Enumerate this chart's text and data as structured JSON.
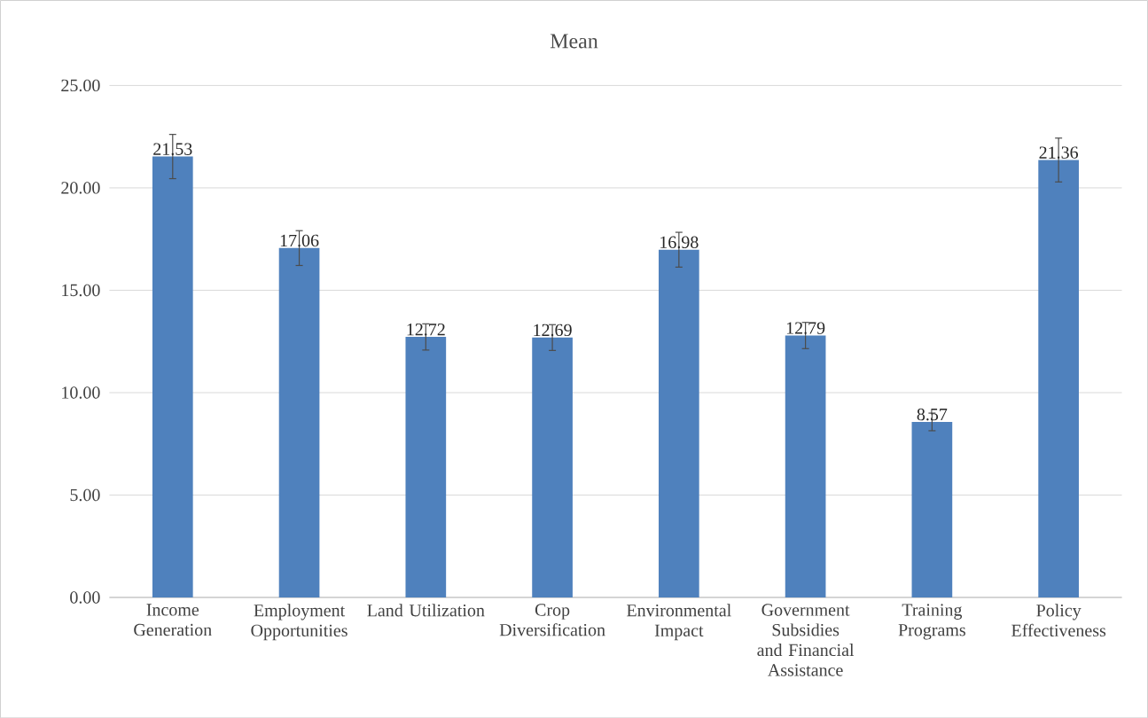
{
  "chart_data": {
    "type": "bar",
    "title": "Mean",
    "categories": [
      "Income Generation",
      "Employment Opportunities",
      "Land Utilization",
      "Crop Diversification",
      "Environmental Impact",
      "Government Subsidies and Financial Assistance",
      "Training Programs",
      "Policy Effectiveness"
    ],
    "values": [
      21.53,
      17.06,
      12.72,
      12.69,
      16.98,
      12.79,
      8.57,
      21.36
    ],
    "errors": [
      1.08,
      0.85,
      0.64,
      0.63,
      0.85,
      0.64,
      0.43,
      1.07
    ],
    "color": "#4f81bd",
    "ylim": [
      0,
      25
    ],
    "yticks": [
      {
        "value": 0,
        "label": "0.00"
      },
      {
        "value": 5,
        "label": "5.00"
      },
      {
        "value": 10,
        "label": "10.00"
      },
      {
        "value": 15,
        "label": "15.00"
      },
      {
        "value": 20,
        "label": "20.00"
      },
      {
        "value": 25,
        "label": "25.00"
      }
    ],
    "grid": "y",
    "data_labels": true
  }
}
